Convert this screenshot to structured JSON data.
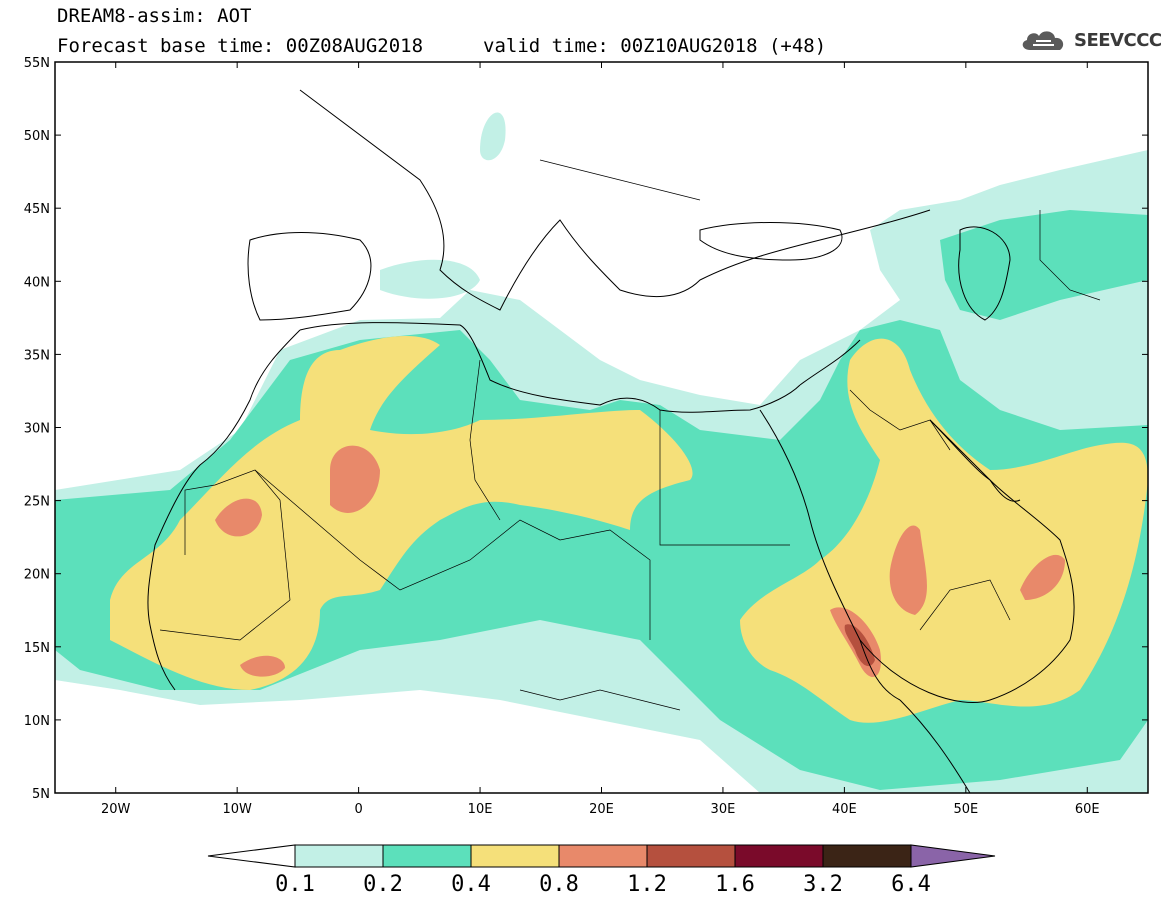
{
  "header": {
    "title": "DREAM8-assim: AOT",
    "base_time": "Forecast base time: 00Z08AUG2018",
    "valid_time": "valid time: 00Z10AUG2018 (+48)",
    "logo_text": "SEEVCCC"
  },
  "map": {
    "lon_range": [
      -25,
      65
    ],
    "lat_range": [
      5,
      55
    ],
    "lon_ticks": [
      {
        "value": -20,
        "label": "20W"
      },
      {
        "value": -10,
        "label": "10W"
      },
      {
        "value": 0,
        "label": "0"
      },
      {
        "value": 10,
        "label": "10E"
      },
      {
        "value": 20,
        "label": "20E"
      },
      {
        "value": 30,
        "label": "30E"
      },
      {
        "value": 40,
        "label": "40E"
      },
      {
        "value": 50,
        "label": "50E"
      },
      {
        "value": 60,
        "label": "60E"
      }
    ],
    "lat_ticks": [
      {
        "value": 55,
        "label": "55N"
      },
      {
        "value": 50,
        "label": "50N"
      },
      {
        "value": 45,
        "label": "45N"
      },
      {
        "value": 40,
        "label": "40N"
      },
      {
        "value": 35,
        "label": "35N"
      },
      {
        "value": 30,
        "label": "30N"
      },
      {
        "value": 25,
        "label": "25N"
      },
      {
        "value": 20,
        "label": "20N"
      },
      {
        "value": 15,
        "label": "15N"
      },
      {
        "value": 10,
        "label": "10N"
      },
      {
        "value": 5,
        "label": "5N"
      }
    ],
    "coast_color": "#000000"
  },
  "colorbar": {
    "levels": [
      "0.1",
      "0.2",
      "0.4",
      "0.8",
      "1.2",
      "1.6",
      "3.2",
      "6.4"
    ],
    "colors": [
      "#ffffff",
      "#c2f0e6",
      "#5ce0bb",
      "#f5e07a",
      "#e8896a",
      "#b5503e",
      "#7a0a2a",
      "#3b2416",
      "#8a64a8"
    ]
  }
}
